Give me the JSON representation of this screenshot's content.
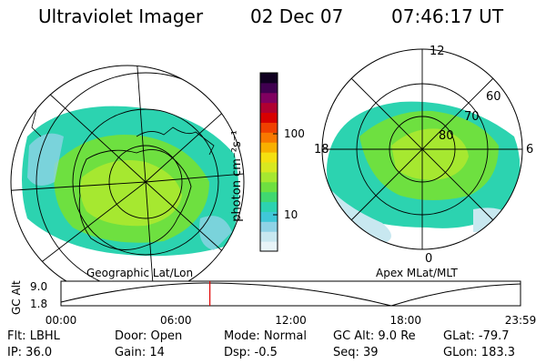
{
  "header": {
    "instrument": "Ultraviolet Imager",
    "date": "02 Dec 07",
    "time": "07:46:17 UT"
  },
  "left_map": {
    "label": "Geographic Lat/Lon"
  },
  "right_map": {
    "label": "Apex MLat/MLT",
    "mlt_labels": [
      "12",
      "18",
      "6",
      "0"
    ],
    "lat_labels": [
      "60",
      "70",
      "80"
    ]
  },
  "colorbar": {
    "unit_label": "photon cm⁻²s⁻¹",
    "ticks": [
      "100",
      "10"
    ],
    "colors": [
      "#e8f4f8",
      "#c8e8f0",
      "#8fd3e6",
      "#40c8d8",
      "#2cd3b0",
      "#40d870",
      "#6ee040",
      "#a6e830",
      "#d8e820",
      "#f4e010",
      "#f8b000",
      "#f87800",
      "#f04000",
      "#d80000",
      "#b00030",
      "#800060",
      "#400050",
      "#100020"
    ]
  },
  "timeline": {
    "axis_label": "GC Alt",
    "y_ticks": [
      "9.0",
      "1.8"
    ],
    "x_ticks": [
      "00:00",
      "06:00",
      "12:00",
      "18:00",
      "23:59"
    ],
    "current_fraction": 0.324
  },
  "info": {
    "filter": "Flt: LBHL",
    "door": "Door: Open",
    "mode": "Mode: Normal",
    "gc_alt": "GC Alt: 9.0 Re",
    "glat": "GLat: -79.7",
    "ip": "IP: 36.0",
    "gain": "Gain: 14",
    "dsp": "Dsp:   -0.5",
    "seq": "Seq: 39",
    "glon": "GLon: 183.3"
  }
}
